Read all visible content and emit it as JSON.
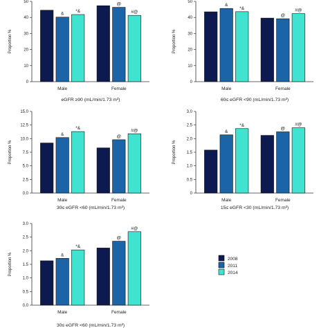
{
  "colors": {
    "2008": "#0d1a4f",
    "2011": "#1c64a8",
    "2014": "#3fe3cf"
  },
  "legend": [
    {
      "label": "2008",
      "color": "#0d1a4f"
    },
    {
      "label": "2011",
      "color": "#1c64a8"
    },
    {
      "label": "2014",
      "color": "#3fe3cf"
    }
  ],
  "chart_data": [
    {
      "type": "bar",
      "caption": "eGFR ≥90 (mL/min/1.73 m²)",
      "ylabel": "Proportion %",
      "ylim": [
        0,
        50
      ],
      "yticks": [
        "0",
        "10",
        "20",
        "30",
        "40",
        "50"
      ],
      "categories": [
        "Male",
        "Female"
      ],
      "series": [
        {
          "name": "2008",
          "values": [
            44.5,
            47.3
          ]
        },
        {
          "name": "2011",
          "values": [
            40.2,
            46.3
          ]
        },
        {
          "name": "2014",
          "values": [
            41.8,
            41.3
          ]
        }
      ],
      "annotations": [
        [
          "",
          "&",
          "*&"
        ],
        [
          "",
          "@",
          "#@"
        ]
      ]
    },
    {
      "type": "bar",
      "caption": "60≤ eGFR <90 (mL/min/1.73 m²)",
      "ylabel": "Proportion %",
      "ylim": [
        0,
        50
      ],
      "yticks": [
        "0",
        "10",
        "20",
        "30",
        "40",
        "50"
      ],
      "categories": [
        "Male",
        "Female"
      ],
      "series": [
        {
          "name": "2008",
          "values": [
            43.5,
            39.6
          ]
        },
        {
          "name": "2011",
          "values": [
            45.6,
            39.2
          ]
        },
        {
          "name": "2014",
          "values": [
            43.6,
            42.4
          ]
        }
      ],
      "annotations": [
        [
          "",
          "&",
          "*&"
        ],
        [
          "",
          "@",
          "#@"
        ]
      ]
    },
    {
      "type": "bar",
      "caption": "30≤ eGFR <60 (mL/min/1.73 m²)",
      "ylabel": "Proportion %",
      "ylim": [
        0,
        15
      ],
      "yticks": [
        "0.0",
        "2.5",
        "5.0",
        "7.5",
        "10.0",
        "12.5",
        "15.0"
      ],
      "categories": [
        "Male",
        "Female"
      ],
      "series": [
        {
          "name": "2008",
          "values": [
            9.2,
            8.3
          ]
        },
        {
          "name": "2011",
          "values": [
            10.2,
            9.8
          ]
        },
        {
          "name": "2014",
          "values": [
            11.3,
            10.9
          ]
        }
      ],
      "annotations": [
        [
          "",
          "&",
          "*&"
        ],
        [
          "",
          "@",
          "#@"
        ]
      ]
    },
    {
      "type": "bar",
      "caption": "15≤ eGFR <30 (mL/min/1.73 m²)",
      "ylabel": "Proportion %",
      "ylim": [
        0,
        3.0
      ],
      "yticks": [
        "0",
        "0.5",
        "1.0",
        "1.5",
        "2.0",
        "2.5",
        "3.0"
      ],
      "categories": [
        "Male",
        "Female"
      ],
      "series": [
        {
          "name": "2008",
          "values": [
            1.58,
            2.12
          ]
        },
        {
          "name": "2011",
          "values": [
            2.14,
            2.25
          ]
        },
        {
          "name": "2014",
          "values": [
            2.37,
            2.4
          ]
        }
      ],
      "annotations": [
        [
          "",
          "&",
          "*&"
        ],
        [
          "",
          "@",
          "#@"
        ]
      ]
    },
    {
      "type": "bar",
      "caption": "30≤ eGFR <60 (mL/min/1.73 m²)",
      "ylabel": "Proportion %",
      "ylim": [
        0,
        3.0
      ],
      "yticks": [
        "0.0",
        "0.5",
        "1.0",
        "1.5",
        "2.0",
        "2.5",
        "3.0"
      ],
      "categories": [
        "Male",
        "Female"
      ],
      "series": [
        {
          "name": "2008",
          "values": [
            1.63,
            2.1
          ]
        },
        {
          "name": "2011",
          "values": [
            1.72,
            2.35
          ]
        },
        {
          "name": "2014",
          "values": [
            2.03,
            2.7
          ]
        }
      ],
      "annotations": [
        [
          "",
          "&",
          "*&"
        ],
        [
          "",
          "@",
          "#@"
        ]
      ]
    }
  ]
}
